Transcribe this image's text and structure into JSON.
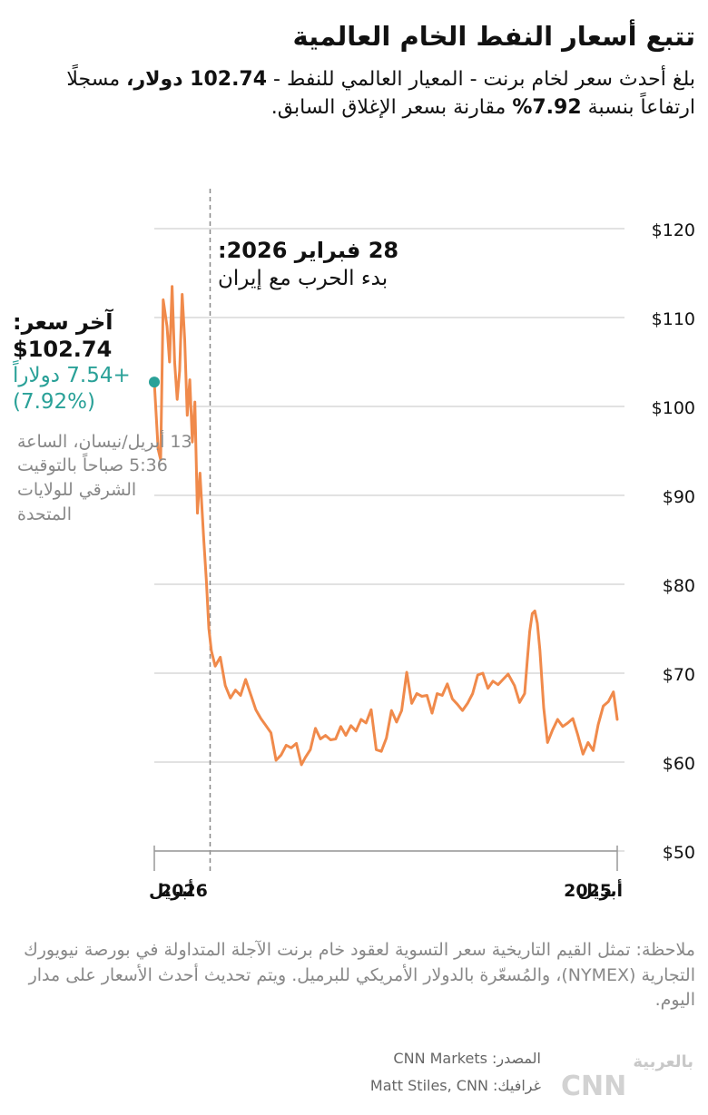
{
  "header": {
    "title": "تتبع أسعار النفط الخام العالمية",
    "subtitle_part1": "بلغ أحدث سعر لخام برنت - المعيار العالمي للنفط - ",
    "subtitle_bold": "102.74 دولار،",
    "subtitle_part2": " مسجلًا ارتفاعاً بنسبة ",
    "subtitle_pct": "7.92%",
    "subtitle_part3": " مقارنة بسعر الإغلاق السابق."
  },
  "event": {
    "date": "28 فبراير 2026:",
    "description": "بدء الحرب مع إيران"
  },
  "last_price": {
    "label": "آخر سعر:",
    "price": "$102.74",
    "change": "+7.54 دولاراً",
    "pct": "(7.92%)",
    "timestamp": "13 أبريل/نيسان، الساعة 5:36 صباحاً بالتوقيت الشرقي للولايات المتحدة"
  },
  "note": "ملاحظة: تمثل القيم التاريخية سعر التسوية لعقود خام برنت الآجلة المتداولة في بورصة نيويورك التجارية (NYMEX)، والمُسعّرة بالدولار الأمريكي للبرميل. ويتم تحديث أحدث الأسعار على مدار اليوم.",
  "credits": {
    "source": "المصدر: CNN Markets",
    "graphic": "غرافيك: Matt Stiles, CNN"
  },
  "logo": {
    "main": "CNN",
    "arabic": "بالعربية"
  },
  "colors": {
    "line": "#f08a4b",
    "accent": "#2aa198",
    "grid": "#d9d9d9"
  },
  "chart_data": {
    "type": "line",
    "title": "تتبع أسعار النفط الخام العالمية",
    "x_direction": "right-to-left",
    "x_range": [
      "2025-04-13",
      "2026-04-13"
    ],
    "x_tick_labels": [
      {
        "date": "2025-04-13",
        "label": "أبريل 2025",
        "year": "2025",
        "month": "أبريل"
      },
      {
        "date": "2026-04-13",
        "label": "أبريل 2026",
        "year": "2026",
        "month": "أبريل"
      }
    ],
    "y_ticks": [
      {
        "value": 50,
        "label": "$50"
      },
      {
        "value": 60,
        "label": "$60"
      },
      {
        "value": 70,
        "label": "$70"
      },
      {
        "value": 80,
        "label": "$80"
      },
      {
        "value": 90,
        "label": "$90"
      },
      {
        "value": 100,
        "label": "$100"
      },
      {
        "value": 110,
        "label": "$110"
      },
      {
        "value": 120,
        "label": "$120"
      }
    ],
    "ylim": [
      50,
      120
    ],
    "grid": true,
    "event_marker": {
      "date": "2026-02-28"
    },
    "last_point": {
      "date": "2026-04-13",
      "value": 102.74
    },
    "series": [
      {
        "points": [
          [
            "2025-04-13",
            64.8
          ],
          [
            "2025-04-16",
            67.9
          ],
          [
            "2025-04-20",
            66.8
          ],
          [
            "2025-04-24",
            66.3
          ],
          [
            "2025-04-28",
            64.2
          ],
          [
            "2025-05-02",
            61.3
          ],
          [
            "2025-05-06",
            62.2
          ],
          [
            "2025-05-10",
            60.9
          ],
          [
            "2025-05-14",
            63.0
          ],
          [
            "2025-05-18",
            64.9
          ],
          [
            "2025-05-22",
            64.4
          ],
          [
            "2025-05-26",
            64.0
          ],
          [
            "2025-05-30",
            64.8
          ],
          [
            "2025-06-03",
            63.6
          ],
          [
            "2025-06-07",
            62.2
          ],
          [
            "2025-06-10",
            66.1
          ],
          [
            "2025-06-13",
            72.6
          ],
          [
            "2025-06-15",
            75.6
          ],
          [
            "2025-06-17",
            77.0
          ],
          [
            "2025-06-19",
            76.7
          ],
          [
            "2025-06-21",
            74.7
          ],
          [
            "2025-06-23",
            71.3
          ],
          [
            "2025-06-25",
            67.7
          ],
          [
            "2025-06-29",
            66.7
          ],
          [
            "2025-07-03",
            68.6
          ],
          [
            "2025-07-08",
            69.9
          ],
          [
            "2025-07-12",
            69.3
          ],
          [
            "2025-07-16",
            68.7
          ],
          [
            "2025-07-20",
            69.1
          ],
          [
            "2025-07-24",
            68.3
          ],
          [
            "2025-07-28",
            70.0
          ],
          [
            "2025-08-01",
            69.8
          ],
          [
            "2025-08-05",
            67.7
          ],
          [
            "2025-08-09",
            66.6
          ],
          [
            "2025-08-13",
            65.8
          ],
          [
            "2025-08-17",
            66.5
          ],
          [
            "2025-08-21",
            67.1
          ],
          [
            "2025-08-25",
            68.8
          ],
          [
            "2025-08-29",
            67.5
          ],
          [
            "2025-09-02",
            67.7
          ],
          [
            "2025-09-06",
            65.5
          ],
          [
            "2025-09-10",
            67.5
          ],
          [
            "2025-09-14",
            67.4
          ],
          [
            "2025-09-18",
            67.7
          ],
          [
            "2025-09-22",
            66.6
          ],
          [
            "2025-09-26",
            70.1
          ],
          [
            "2025-09-30",
            65.8
          ],
          [
            "2025-10-04",
            64.5
          ],
          [
            "2025-10-08",
            65.8
          ],
          [
            "2025-10-12",
            62.7
          ],
          [
            "2025-10-16",
            61.2
          ],
          [
            "2025-10-20",
            61.4
          ],
          [
            "2025-10-24",
            65.9
          ],
          [
            "2025-10-28",
            64.4
          ],
          [
            "2025-11-01",
            64.8
          ],
          [
            "2025-11-05",
            63.5
          ],
          [
            "2025-11-09",
            64.1
          ],
          [
            "2025-11-13",
            63.0
          ],
          [
            "2025-11-17",
            64.0
          ],
          [
            "2025-11-21",
            62.6
          ],
          [
            "2025-11-25",
            62.5
          ],
          [
            "2025-11-29",
            63.0
          ],
          [
            "2025-12-03",
            62.6
          ],
          [
            "2025-12-07",
            63.8
          ],
          [
            "2025-12-11",
            61.4
          ],
          [
            "2025-12-15",
            60.5
          ],
          [
            "2025-12-18",
            59.7
          ],
          [
            "2025-12-22",
            62.1
          ],
          [
            "2025-12-26",
            61.6
          ],
          [
            "2025-12-30",
            61.9
          ],
          [
            "2026-01-03",
            60.8
          ],
          [
            "2026-01-07",
            60.2
          ],
          [
            "2026-01-11",
            63.3
          ],
          [
            "2026-01-15",
            64.1
          ],
          [
            "2026-01-19",
            64.9
          ],
          [
            "2026-01-23",
            65.9
          ],
          [
            "2026-01-27",
            67.6
          ],
          [
            "2026-01-31",
            69.3
          ],
          [
            "2026-02-04",
            67.5
          ],
          [
            "2026-02-08",
            68.1
          ],
          [
            "2026-02-12",
            67.2
          ],
          [
            "2026-02-16",
            68.6
          ],
          [
            "2026-02-20",
            71.8
          ],
          [
            "2026-02-24",
            70.8
          ],
          [
            "2026-02-27",
            72.5
          ],
          [
            "2026-03-01",
            75.0
          ],
          [
            "2026-03-03",
            80.5
          ],
          [
            "2026-03-05",
            85.0
          ],
          [
            "2026-03-08",
            92.5
          ],
          [
            "2026-03-10",
            88.0
          ],
          [
            "2026-03-12",
            100.5
          ],
          [
            "2026-03-14",
            96.0
          ],
          [
            "2026-03-16",
            103.0
          ],
          [
            "2026-03-18",
            99.0
          ],
          [
            "2026-03-20",
            107.5
          ],
          [
            "2026-03-22",
            112.6
          ],
          [
            "2026-03-24",
            104.0
          ],
          [
            "2026-03-26",
            100.8
          ],
          [
            "2026-03-28",
            105.0
          ],
          [
            "2026-03-30",
            113.5
          ],
          [
            "2026-04-01",
            105.0
          ],
          [
            "2026-04-03",
            109.0
          ],
          [
            "2026-04-06",
            112.0
          ],
          [
            "2026-04-08",
            94.0
          ],
          [
            "2026-04-10",
            95.2
          ],
          [
            "2026-04-13",
            102.74
          ]
        ]
      }
    ]
  }
}
